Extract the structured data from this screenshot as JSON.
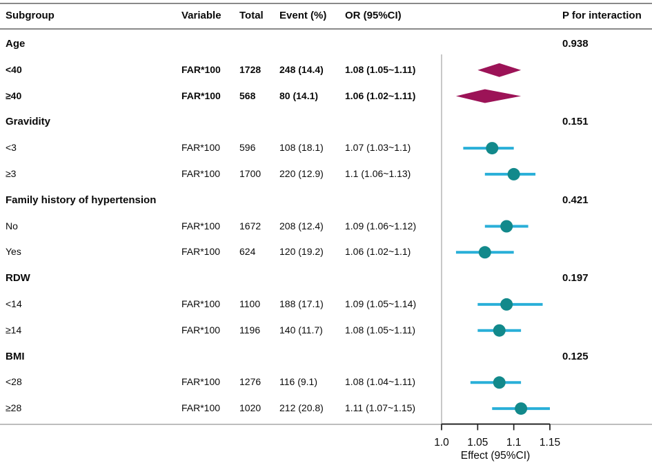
{
  "table_header": {
    "subgroup": "Subgroup",
    "variable": "Variable",
    "total": "Total",
    "event": "Event (%)",
    "or_ci": "OR (95%CI)",
    "p_interaction": "P for interaction"
  },
  "colors": {
    "diamond": "#9C1357",
    "point": "#12898B",
    "ci_line": "#29AFD8",
    "reference_line": "#b5b5b5",
    "axis": "#1f1f1f"
  },
  "chart_data": {
    "type": "forest",
    "x_axis": {
      "label": "Effect (95%CI)",
      "tick_labels": [
        "1.0",
        "1.05",
        "1.1",
        "1.15"
      ],
      "tick_values": [
        1.0,
        1.05,
        1.1,
        1.15
      ],
      "range": [
        1.0,
        1.15
      ],
      "reference_line": 1.0
    },
    "rows": [
      {
        "kind": "section",
        "subgroup": "Age",
        "p_for_interaction": "0.938"
      },
      {
        "kind": "estimate",
        "subgroup": "<40",
        "variable": "FAR*100",
        "total": "1728",
        "event": "248 (14.4)",
        "or_ci": "1.08 (1.05~1.11)",
        "est": 1.08,
        "lo": 1.05,
        "hi": 1.11,
        "marker": "diamond",
        "bold": true
      },
      {
        "kind": "estimate",
        "subgroup": "≥40",
        "variable": "FAR*100",
        "total": "568",
        "event": "80 (14.1)",
        "or_ci": "1.06 (1.02~1.11)",
        "est": 1.06,
        "lo": 1.02,
        "hi": 1.11,
        "marker": "diamond",
        "bold": true
      },
      {
        "kind": "section",
        "subgroup": "Gravidity",
        "p_for_interaction": "0.151"
      },
      {
        "kind": "estimate",
        "subgroup": "<3",
        "variable": "FAR*100",
        "total": "596",
        "event": "108 (18.1)",
        "or_ci": "1.07 (1.03~1.1)",
        "est": 1.07,
        "lo": 1.03,
        "hi": 1.1,
        "marker": "circle",
        "bold": false
      },
      {
        "kind": "estimate",
        "subgroup": "≥3",
        "variable": "FAR*100",
        "total": "1700",
        "event": "220 (12.9)",
        "or_ci": "1.1 (1.06~1.13)",
        "est": 1.1,
        "lo": 1.06,
        "hi": 1.13,
        "marker": "circle",
        "bold": false
      },
      {
        "kind": "section",
        "subgroup": "Family history of hypertension",
        "p_for_interaction": "0.421"
      },
      {
        "kind": "estimate",
        "subgroup": "No",
        "variable": "FAR*100",
        "total": "1672",
        "event": "208 (12.4)",
        "or_ci": "1.09 (1.06~1.12)",
        "est": 1.09,
        "lo": 1.06,
        "hi": 1.12,
        "marker": "circle",
        "bold": false
      },
      {
        "kind": "estimate",
        "subgroup": "Yes",
        "variable": "FAR*100",
        "total": "624",
        "event": "120 (19.2)",
        "or_ci": "1.06 (1.02~1.1)",
        "est": 1.06,
        "lo": 1.02,
        "hi": 1.1,
        "marker": "circle",
        "bold": false
      },
      {
        "kind": "section",
        "subgroup": "RDW",
        "p_for_interaction": "0.197"
      },
      {
        "kind": "estimate",
        "subgroup": "<14",
        "variable": "FAR*100",
        "total": "1100",
        "event": "188 (17.1)",
        "or_ci": "1.09 (1.05~1.14)",
        "est": 1.09,
        "lo": 1.05,
        "hi": 1.14,
        "marker": "circle",
        "bold": false
      },
      {
        "kind": "estimate",
        "subgroup": "≥14",
        "variable": "FAR*100",
        "total": "1196",
        "event": "140 (11.7)",
        "or_ci": "1.08 (1.05~1.11)",
        "est": 1.08,
        "lo": 1.05,
        "hi": 1.11,
        "marker": "circle",
        "bold": false
      },
      {
        "kind": "section",
        "subgroup": "BMI",
        "p_for_interaction": "0.125"
      },
      {
        "kind": "estimate",
        "subgroup": "<28",
        "variable": "FAR*100",
        "total": "1276",
        "event": "116 (9.1)",
        "or_ci": "1.08 (1.04~1.11)",
        "est": 1.08,
        "lo": 1.04,
        "hi": 1.11,
        "marker": "circle",
        "bold": false
      },
      {
        "kind": "estimate",
        "subgroup": "≥28",
        "variable": "FAR*100",
        "total": "1020",
        "event": "212 (20.8)",
        "or_ci": "1.11 (1.07~1.15)",
        "est": 1.11,
        "lo": 1.07,
        "hi": 1.15,
        "marker": "circle",
        "bold": false
      }
    ]
  }
}
